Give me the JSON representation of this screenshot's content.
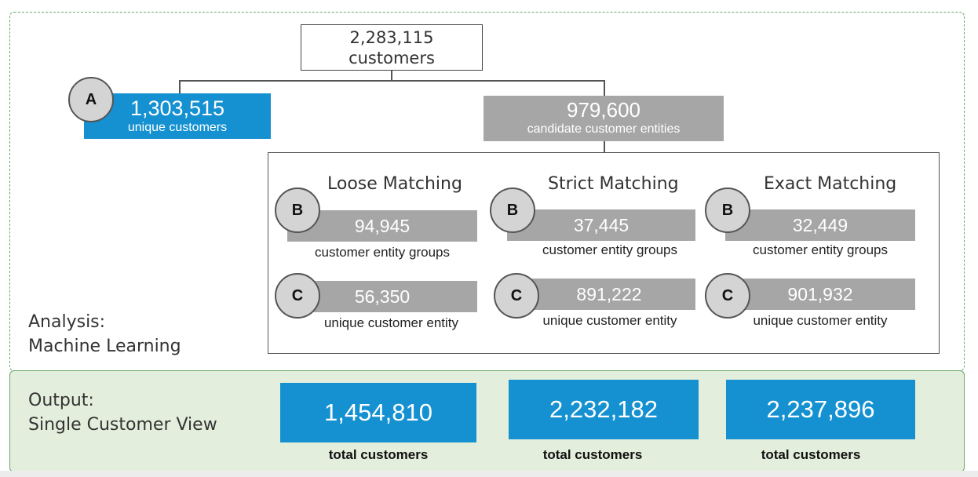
{
  "root": {
    "count": "2,283,115",
    "label": "customers"
  },
  "branch_a": {
    "marker": "A",
    "count": "1,303,515",
    "label": "unique customers"
  },
  "candidates": {
    "count": "979,600",
    "label": "candidate customer entities"
  },
  "matching": [
    {
      "title": "Loose Matching",
      "groups": {
        "marker": "B",
        "count": "94,945",
        "label": "customer entity groups"
      },
      "unique": {
        "marker": "C",
        "count": "56,350",
        "label": "unique customer entity"
      }
    },
    {
      "title": "Strict Matching",
      "groups": {
        "marker": "B",
        "count": "37,445",
        "label": "customer entity groups"
      },
      "unique": {
        "marker": "C",
        "count": "891,222",
        "label": "unique customer entity"
      }
    },
    {
      "title": "Exact Matching",
      "groups": {
        "marker": "B",
        "count": "32,449",
        "label": "customer entity groups"
      },
      "unique": {
        "marker": "C",
        "count": "901,932",
        "label": "unique customer entity"
      }
    }
  ],
  "analysis": {
    "line1": "Analysis:",
    "line2": "Machine Learning"
  },
  "output": {
    "line1": "Output:",
    "line2": "Single Customer View",
    "totals": [
      {
        "count": "1,454,810",
        "label": "total customers"
      },
      {
        "count": "2,232,182",
        "label": "total customers"
      },
      {
        "count": "2,237,896",
        "label": "total customers"
      }
    ]
  },
  "colors": {
    "blue": "#1591d1",
    "gray": "#a6a6a6",
    "green_fill": "#e3eedc",
    "green_border": "#6aa86a"
  }
}
